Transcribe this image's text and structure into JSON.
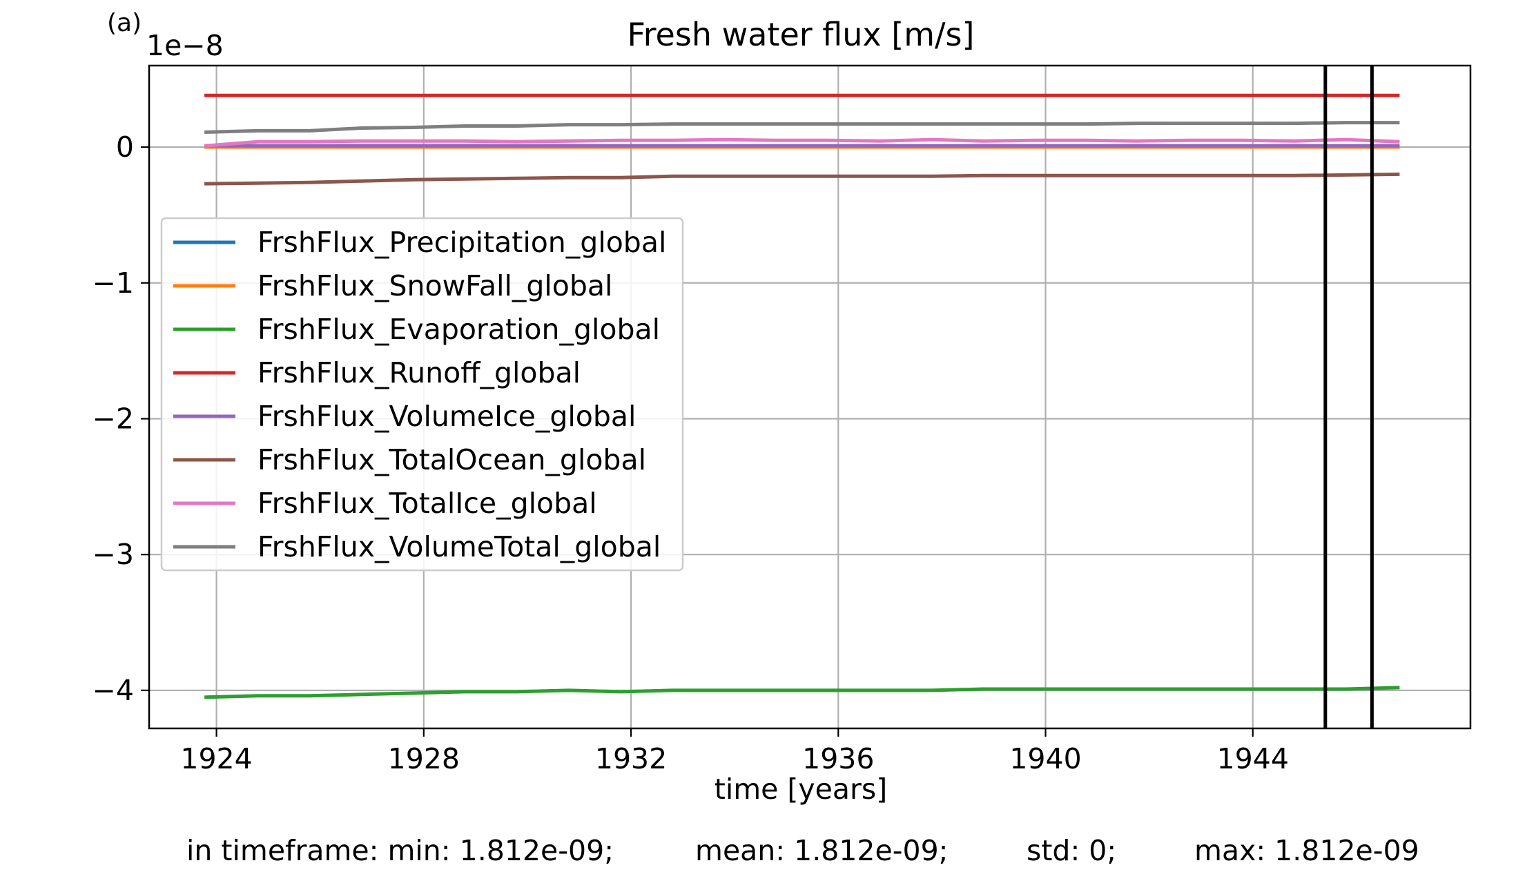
{
  "panel_label": "(a)",
  "chart_data": {
    "type": "line",
    "title": "Fresh water flux [m/s]",
    "xlabel": "time [years]",
    "ylabel": "",
    "y_scale_note": "1e−8",
    "xlim": [
      1922.7,
      1948.2
    ],
    "ylim": [
      -4.28,
      0.6
    ],
    "x_ticks": [
      1924,
      1928,
      1932,
      1936,
      1940,
      1944
    ],
    "y_ticks": [
      0,
      -1,
      -2,
      -3,
      -4
    ],
    "y_tick_labels": [
      "0",
      "−1",
      "−2",
      "−3",
      "−4"
    ],
    "grid": true,
    "legend_position": "center-left",
    "x": [
      1923.8,
      1924.8,
      1925.8,
      1926.8,
      1927.8,
      1928.8,
      1929.8,
      1930.8,
      1931.8,
      1932.8,
      1933.8,
      1934.8,
      1935.8,
      1936.8,
      1937.8,
      1938.8,
      1939.8,
      1940.8,
      1941.8,
      1942.8,
      1943.8,
      1944.8,
      1945.8,
      1946.8
    ],
    "series": [
      {
        "name": "FrshFlux_Precipitation_global",
        "color": "#1f77b4",
        "values": [
          0.0,
          0.0,
          0.0,
          0.0,
          0.0,
          0.0,
          0.0,
          0.0,
          0.0,
          0.0,
          0.0,
          0.0,
          0.0,
          0.0,
          0.0,
          0.0,
          0.0,
          0.0,
          0.0,
          0.0,
          0.0,
          0.0,
          0.0,
          0.0
        ]
      },
      {
        "name": "FrshFlux_SnowFall_global",
        "color": "#ff7f0e",
        "values": [
          0.0,
          0.0,
          0.0,
          0.0,
          0.0,
          0.0,
          0.0,
          0.0,
          0.0,
          0.0,
          0.0,
          0.0,
          0.0,
          0.0,
          0.0,
          0.0,
          0.0,
          0.0,
          0.0,
          0.0,
          0.0,
          0.0,
          0.0,
          0.0
        ]
      },
      {
        "name": "FrshFlux_Evaporation_global",
        "color": "#2ca02c",
        "values": [
          -4.05,
          -4.04,
          -4.04,
          -4.03,
          -4.02,
          -4.01,
          -4.01,
          -4.0,
          -4.01,
          -4.0,
          -4.0,
          -4.0,
          -4.0,
          -4.0,
          -4.0,
          -3.99,
          -3.99,
          -3.99,
          -3.99,
          -3.99,
          -3.99,
          -3.99,
          -3.99,
          -3.98
        ]
      },
      {
        "name": "FrshFlux_Runoff_global",
        "color": "#d62728",
        "values": [
          0.38,
          0.38,
          0.38,
          0.38,
          0.38,
          0.38,
          0.38,
          0.38,
          0.38,
          0.38,
          0.38,
          0.38,
          0.38,
          0.38,
          0.38,
          0.38,
          0.38,
          0.38,
          0.38,
          0.38,
          0.38,
          0.38,
          0.38,
          0.38
        ]
      },
      {
        "name": "FrshFlux_VolumeIce_global",
        "color": "#9467bd",
        "values": [
          0.01,
          0.01,
          0.01,
          0.01,
          0.01,
          0.01,
          0.01,
          0.01,
          0.01,
          0.01,
          0.01,
          0.01,
          0.01,
          0.01,
          0.01,
          0.01,
          0.01,
          0.01,
          0.01,
          0.01,
          0.01,
          0.01,
          0.01,
          0.01
        ]
      },
      {
        "name": "FrshFlux_TotalOcean_global",
        "color": "#8c564b",
        "values": [
          -0.27,
          -0.265,
          -0.26,
          -0.25,
          -0.24,
          -0.235,
          -0.23,
          -0.225,
          -0.225,
          -0.215,
          -0.215,
          -0.215,
          -0.215,
          -0.215,
          -0.215,
          -0.21,
          -0.21,
          -0.21,
          -0.21,
          -0.21,
          -0.21,
          -0.21,
          -0.205,
          -0.2
        ]
      },
      {
        "name": "FrshFlux_TotalIce_global",
        "color": "#e377c2",
        "values": [
          0.01,
          0.04,
          0.04,
          0.045,
          0.045,
          0.045,
          0.04,
          0.045,
          0.05,
          0.05,
          0.055,
          0.05,
          0.05,
          0.045,
          0.055,
          0.045,
          0.05,
          0.05,
          0.045,
          0.05,
          0.05,
          0.045,
          0.055,
          0.04
        ]
      },
      {
        "name": "FrshFlux_VolumeTotal_global",
        "color": "#7f7f7f",
        "values": [
          0.11,
          0.12,
          0.12,
          0.14,
          0.145,
          0.155,
          0.155,
          0.165,
          0.165,
          0.17,
          0.17,
          0.17,
          0.17,
          0.17,
          0.17,
          0.17,
          0.17,
          0.17,
          0.175,
          0.175,
          0.175,
          0.175,
          0.18,
          0.18
        ]
      }
    ],
    "vlines": [
      1945.4,
      1946.3
    ],
    "vline_color": "#000000"
  },
  "stats": {
    "min": "in timeframe: min: 1.812e-09;",
    "mean": "mean: 1.812e-09;",
    "std": "std: 0;",
    "max": "max: 1.812e-09"
  }
}
